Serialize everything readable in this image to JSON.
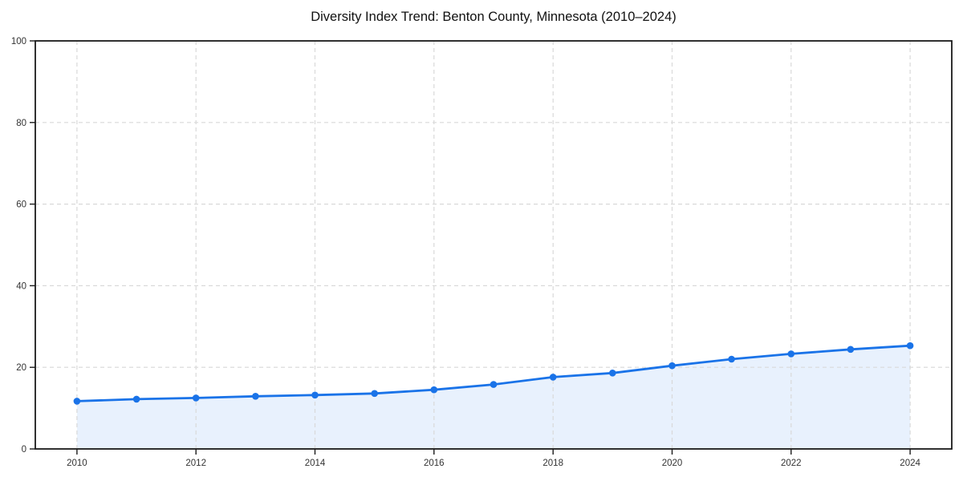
{
  "chart_data": {
    "type": "line",
    "title": "Diversity Index Trend: Benton County, Minnesota (2010–2024)",
    "series": [
      {
        "name": "Diversity Index",
        "x": [
          2010,
          2011,
          2012,
          2013,
          2014,
          2015,
          2016,
          2017,
          2018,
          2019,
          2020,
          2021,
          2022,
          2023,
          2024
        ],
        "values": [
          11.7,
          12.2,
          12.5,
          12.9,
          13.2,
          13.6,
          14.5,
          15.8,
          17.6,
          18.6,
          20.4,
          22.0,
          23.3,
          24.4,
          25.3
        ]
      }
    ],
    "xlabel": "",
    "ylabel": "",
    "xlim": [
      2009.3,
      2024.7
    ],
    "ylim": [
      0,
      100
    ],
    "xticks": [
      2010,
      2012,
      2014,
      2016,
      2018,
      2020,
      2022,
      2024
    ],
    "yticks": [
      0,
      20,
      40,
      60,
      80,
      100
    ],
    "grid": true,
    "grid_style": "dashed",
    "legend": false,
    "marker": "circle",
    "area_fill": true,
    "colors": {
      "line": "#1a73e8",
      "marker": "#1a73e8",
      "fill": "#1a73e8",
      "fill_opacity": 0.1,
      "grid": "#d9d9d9",
      "spine": "#1a1a1a",
      "tick_label": "#333333",
      "title": "#111111",
      "background": "#ffffff"
    }
  }
}
